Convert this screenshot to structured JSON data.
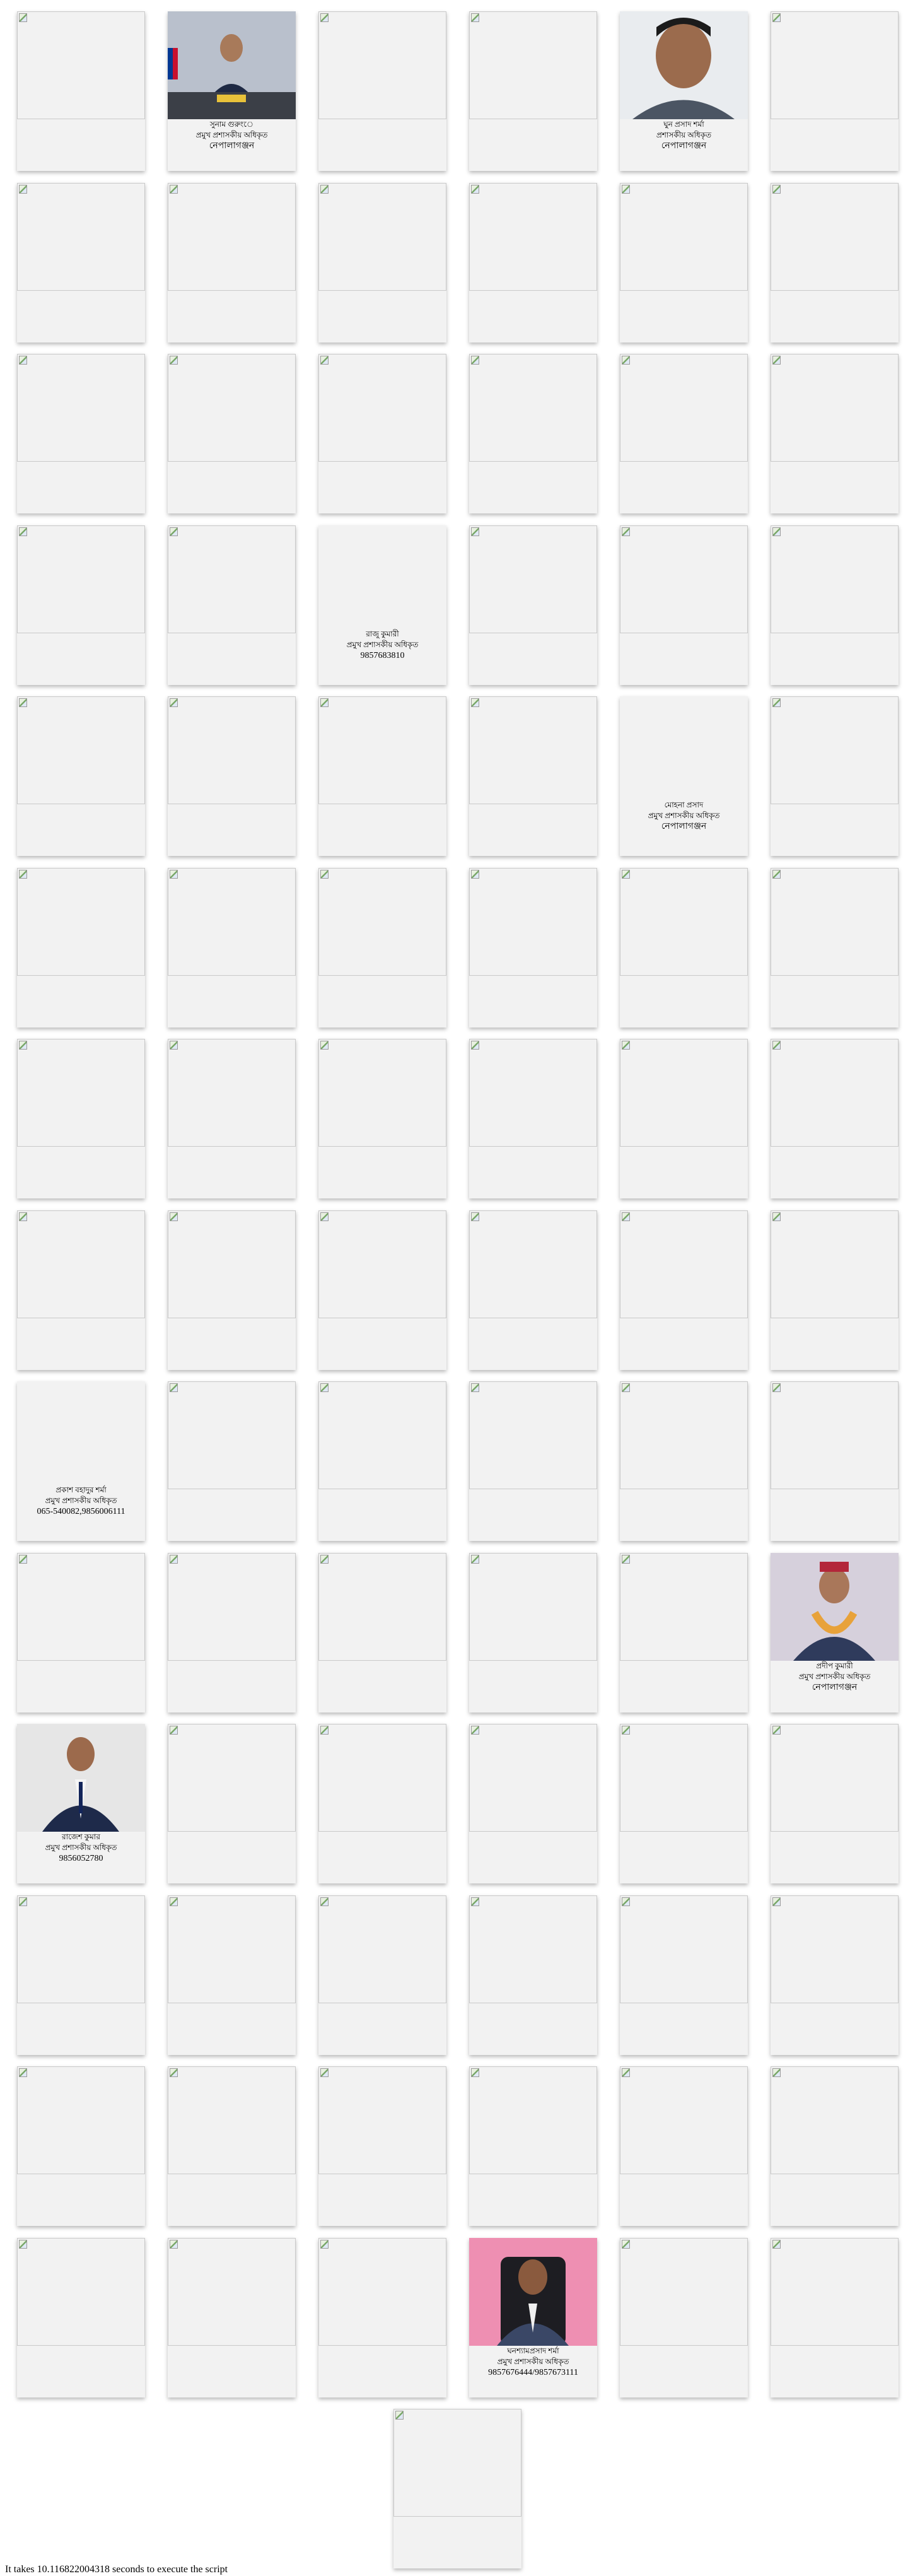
{
  "rows": [
    [
      {
        "photo": "broken"
      },
      {
        "photo": "official-desk",
        "name": "সুনাম গুরুংে",
        "designation": "প্রমুখ প্রশাসকীয় অধিকৃত",
        "contact": "নেপালাগঞ্জন"
      },
      {
        "photo": "broken"
      },
      {
        "photo": "broken"
      },
      {
        "photo": "portrait-man",
        "name": "ঘুন প্রসাদ শর্মা",
        "designation": "প্রশাসকীয় অধিকৃত",
        "contact": "নেপালাগঞ্জন"
      },
      {
        "photo": "broken"
      }
    ],
    [
      {
        "photo": "broken"
      },
      {
        "photo": "broken"
      },
      {
        "photo": "broken"
      },
      {
        "photo": "broken"
      },
      {
        "photo": "broken"
      },
      {
        "photo": "broken"
      }
    ],
    [
      {
        "photo": "broken"
      },
      {
        "photo": "broken"
      },
      {
        "photo": "broken"
      },
      {
        "photo": "broken"
      },
      {
        "photo": "broken"
      },
      {
        "photo": "broken"
      }
    ],
    [
      {
        "photo": "broken"
      },
      {
        "photo": "broken"
      },
      {
        "photo": "none",
        "name": "রাজু কুমারী",
        "designation": "প্রমুখ প্রশাসকীয় অধিকৃত",
        "contact": "9857683810"
      },
      {
        "photo": "broken"
      },
      {
        "photo": "broken"
      },
      {
        "photo": "broken"
      }
    ],
    [
      {
        "photo": "broken"
      },
      {
        "photo": "broken"
      },
      {
        "photo": "broken"
      },
      {
        "photo": "broken"
      },
      {
        "photo": "none",
        "name": "মোহনা প্রসাদ",
        "designation": "প্রমুখ প্রশাসকীয় অধিকৃত",
        "contact": "নেপালাগঞ্জন"
      },
      {
        "photo": "broken"
      }
    ],
    [
      {
        "photo": "broken"
      },
      {
        "photo": "broken"
      },
      {
        "photo": "broken"
      },
      {
        "photo": "broken"
      },
      {
        "photo": "broken"
      },
      {
        "photo": "broken"
      }
    ],
    [
      {
        "photo": "broken"
      },
      {
        "photo": "broken"
      },
      {
        "photo": "broken"
      },
      {
        "photo": "broken"
      },
      {
        "photo": "broken"
      },
      {
        "photo": "broken"
      }
    ],
    [
      {
        "photo": "broken"
      },
      {
        "photo": "broken"
      },
      {
        "photo": "broken"
      },
      {
        "photo": "broken"
      },
      {
        "photo": "broken"
      },
      {
        "photo": "broken"
      }
    ],
    [
      {
        "photo": "none",
        "name": "প্রকাশ বহাদুর শর্মা",
        "designation": "প্রমুখ প্রশাসকীয় অধিকৃত",
        "contact": "065-540082,9856006111"
      },
      {
        "photo": "broken"
      },
      {
        "photo": "broken"
      },
      {
        "photo": "broken"
      },
      {
        "photo": "broken"
      },
      {
        "photo": "broken"
      }
    ],
    [
      {
        "photo": "broken"
      },
      {
        "photo": "broken"
      },
      {
        "photo": "broken"
      },
      {
        "photo": "broken"
      },
      {
        "photo": "broken"
      },
      {
        "photo": "garland-man",
        "name": "প্রদীপ কুমারী",
        "designation": "প্রমুখ প্রশাসকীয় অধিকৃত",
        "contact": "নেপালাগঞ্জন"
      }
    ],
    [
      {
        "photo": "suit-man",
        "name": "রাজেশ কুমার",
        "designation": "প্রমুখ প্রশাসকীয় অধিকৃত",
        "contact": "9856052780"
      },
      {
        "photo": "broken"
      },
      {
        "photo": "broken"
      },
      {
        "photo": "broken"
      },
      {
        "photo": "broken"
      },
      {
        "photo": "broken"
      }
    ],
    [
      {
        "photo": "broken"
      },
      {
        "photo": "broken"
      },
      {
        "photo": "broken"
      },
      {
        "photo": "broken"
      },
      {
        "photo": "broken"
      },
      {
        "photo": "broken"
      }
    ],
    [
      {
        "photo": "broken"
      },
      {
        "photo": "broken"
      },
      {
        "photo": "broken"
      },
      {
        "photo": "broken"
      },
      {
        "photo": "broken"
      },
      {
        "photo": "broken"
      }
    ],
    [
      {
        "photo": "broken"
      },
      {
        "photo": "broken"
      },
      {
        "photo": "broken"
      },
      {
        "photo": "pink-bg-man",
        "name": "ঘনশ্যামপ্রসাদ শর্মা",
        "designation": "প্রমুখ প্রশাসকীয় অধিকৃত",
        "contact": "9857676444/9857673111"
      },
      {
        "photo": "broken"
      },
      {
        "photo": "broken"
      }
    ],
    [
      {
        "photo": "broken"
      }
    ]
  ],
  "footer": {
    "text": "It takes 10.116822004318 seconds to execute the script"
  }
}
